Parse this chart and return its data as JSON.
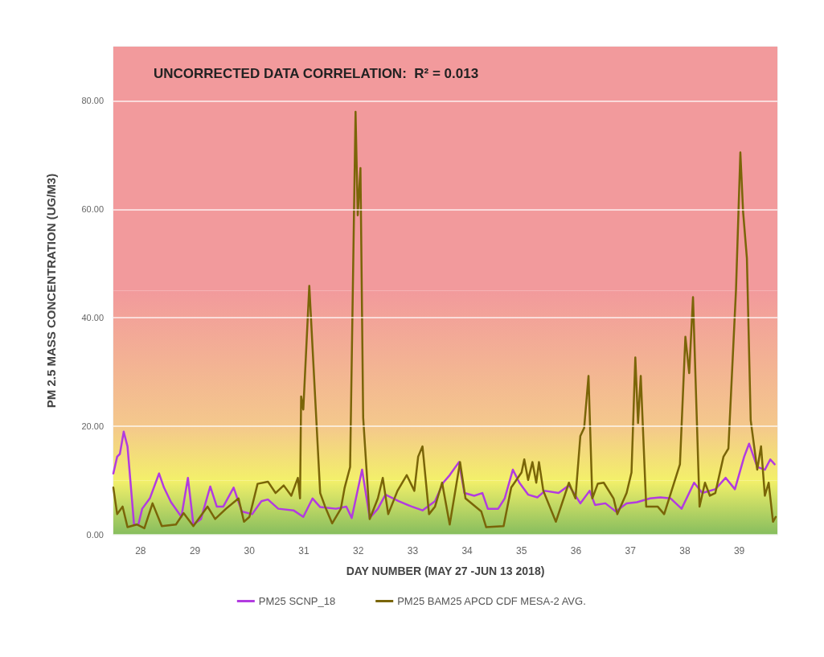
{
  "chart_data": {
    "type": "line",
    "title": "UNCORRECTED DATA CORRELATION:  R² = 0.013",
    "xlabel": "DAY NUMBER (MAY 27 -JUN 13 2018)",
    "ylabel": "PM 2.5 MASS CONCENTRATION (UG/M3)",
    "xlim": [
      27.5,
      39.7
    ],
    "xticks": [
      28,
      29,
      30,
      31,
      32,
      33,
      34,
      35,
      36,
      37,
      38,
      39
    ],
    "ylim": [
      0,
      90
    ],
    "yticks": [
      {
        "value": 0,
        "label": "0.00"
      },
      {
        "value": 20,
        "label": "20.00"
      },
      {
        "value": 40,
        "label": "40.00"
      },
      {
        "value": 60,
        "label": "60.00"
      },
      {
        "value": 80,
        "label": "80.00"
      }
    ],
    "grid": "y",
    "legend": "bottom",
    "marker": "none",
    "line_style": "solid",
    "bands": [
      {
        "axis": "y",
        "from": 0,
        "to": 10,
        "color": "#86bd5e"
      },
      {
        "axis": "y",
        "from": 10,
        "to": 20,
        "color": "#f3f06a"
      },
      {
        "axis": "y",
        "from": 20,
        "to": 45,
        "color": "#f4c88c"
      },
      {
        "axis": "y",
        "from": 45,
        "to": 90,
        "color": "#f29a9c"
      }
    ],
    "series": [
      {
        "name": "PM25 SCNP_18",
        "color": "#b23be0",
        "x": [
          27.5,
          27.57,
          27.62,
          27.69,
          27.76,
          27.88,
          27.96,
          28.03,
          28.17,
          28.34,
          28.43,
          28.56,
          28.68,
          28.75,
          28.87,
          28.97,
          29.11,
          29.28,
          29.4,
          29.52,
          29.71,
          29.86,
          30.05,
          30.22,
          30.34,
          30.53,
          30.81,
          30.99,
          31.16,
          31.3,
          31.59,
          31.78,
          31.88,
          32.07,
          32.21,
          32.36,
          32.5,
          32.74,
          32.98,
          33.18,
          33.41,
          33.56,
          33.68,
          33.85,
          33.95,
          34.13,
          34.28,
          34.38,
          34.57,
          34.69,
          34.84,
          34.96,
          35.12,
          35.29,
          35.43,
          35.68,
          35.87,
          36.08,
          36.25,
          36.35,
          36.54,
          36.73,
          36.93,
          37.12,
          37.36,
          37.55,
          37.74,
          37.94,
          38.17,
          38.32,
          38.56,
          38.75,
          38.92,
          39.09,
          39.18,
          39.33,
          39.47,
          39.57,
          39.65
        ],
        "values": [
          11.3,
          14.4,
          14.9,
          19.0,
          16.3,
          1.9,
          1.9,
          4.8,
          6.7,
          11.3,
          8.7,
          6.0,
          4.3,
          3.3,
          10.5,
          1.9,
          2.9,
          8.9,
          5.2,
          5.2,
          8.7,
          4.3,
          3.8,
          6.2,
          6.5,
          4.8,
          4.5,
          3.3,
          6.7,
          5.1,
          4.8,
          5.2,
          3.1,
          12.0,
          3.1,
          4.8,
          7.4,
          6.2,
          5.2,
          4.5,
          6.2,
          9.6,
          11.0,
          13.4,
          7.7,
          7.2,
          7.7,
          4.8,
          4.8,
          6.7,
          12.0,
          9.6,
          7.4,
          6.9,
          8.1,
          7.7,
          9.1,
          5.8,
          8.1,
          5.5,
          5.8,
          4.3,
          5.8,
          6.0,
          6.7,
          6.9,
          6.7,
          4.8,
          9.6,
          7.7,
          8.4,
          10.5,
          8.4,
          14.4,
          16.8,
          12.5,
          12.0,
          13.9,
          13.0
        ]
      },
      {
        "name": "PM25 BAM25 APCD CDF MESA-2 AVG.",
        "color": "#7a6508",
        "x": [
          27.5,
          27.57,
          27.67,
          27.76,
          27.93,
          28.07,
          28.22,
          28.39,
          28.65,
          28.79,
          28.97,
          29.23,
          29.37,
          29.57,
          29.8,
          29.9,
          30.0,
          30.15,
          30.34,
          30.48,
          30.63,
          30.77,
          30.89,
          30.93,
          30.95,
          30.99,
          31.1,
          31.3,
          31.39,
          31.52,
          31.68,
          31.75,
          31.85,
          31.95,
          31.99,
          32.04,
          32.09,
          32.21,
          32.36,
          32.45,
          32.55,
          32.72,
          32.89,
          33.03,
          33.1,
          33.18,
          33.3,
          33.41,
          33.54,
          33.68,
          33.87,
          33.97,
          34.26,
          34.35,
          34.67,
          34.81,
          35.0,
          35.05,
          35.12,
          35.2,
          35.27,
          35.32,
          35.4,
          35.63,
          35.87,
          35.99,
          36.08,
          36.15,
          36.23,
          36.3,
          36.4,
          36.51,
          36.69,
          36.76,
          36.93,
          37.02,
          37.09,
          37.14,
          37.19,
          37.29,
          37.5,
          37.62,
          37.91,
          38.01,
          38.08,
          38.15,
          38.27,
          38.37,
          38.46,
          38.56,
          38.71,
          38.8,
          38.94,
          39.02,
          39.07,
          39.14,
          39.21,
          39.33,
          39.4,
          39.47,
          39.54,
          39.62,
          39.67
        ],
        "values": [
          8.7,
          3.8,
          5.2,
          1.4,
          1.9,
          1.2,
          5.8,
          1.6,
          1.9,
          4.0,
          1.6,
          5.2,
          2.9,
          4.8,
          6.7,
          2.4,
          3.3,
          9.4,
          9.8,
          7.7,
          9.1,
          7.2,
          10.5,
          6.7,
          25.5,
          23.1,
          45.9,
          7.7,
          5.2,
          2.1,
          4.8,
          8.7,
          12.5,
          78.0,
          58.9,
          67.6,
          21.6,
          2.9,
          6.7,
          10.5,
          3.8,
          8.1,
          11.0,
          8.1,
          14.4,
          16.3,
          3.8,
          5.2,
          9.6,
          1.9,
          13.4,
          6.7,
          4.3,
          1.4,
          1.6,
          8.7,
          11.5,
          13.9,
          10.1,
          13.4,
          9.6,
          13.4,
          8.1,
          2.4,
          9.6,
          6.7,
          18.2,
          19.7,
          29.3,
          6.7,
          9.4,
          9.6,
          6.7,
          3.8,
          7.7,
          11.5,
          32.7,
          20.6,
          29.3,
          5.2,
          5.2,
          3.8,
          13.0,
          36.5,
          29.8,
          43.8,
          5.2,
          9.6,
          7.2,
          7.7,
          14.4,
          15.9,
          45.2,
          70.5,
          59.6,
          51.0,
          21.1,
          12.0,
          16.3,
          7.2,
          9.6,
          2.4,
          3.3
        ]
      }
    ]
  }
}
